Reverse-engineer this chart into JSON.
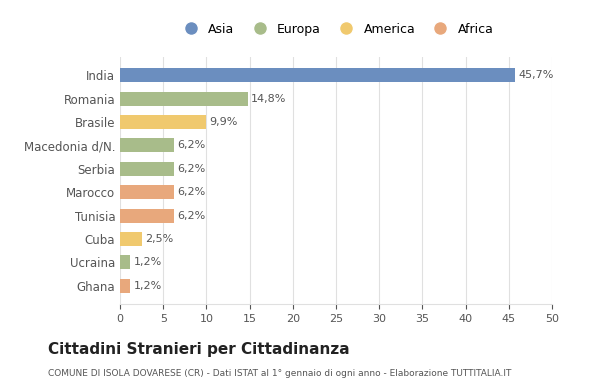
{
  "categories": [
    "India",
    "Romania",
    "Brasile",
    "Macedonia d/N.",
    "Serbia",
    "Marocco",
    "Tunisia",
    "Cuba",
    "Ucraina",
    "Ghana"
  ],
  "values": [
    45.7,
    14.8,
    9.9,
    6.2,
    6.2,
    6.2,
    6.2,
    2.5,
    1.2,
    1.2
  ],
  "labels": [
    "45,7%",
    "14,8%",
    "9,9%",
    "6,2%",
    "6,2%",
    "6,2%",
    "6,2%",
    "2,5%",
    "1,2%",
    "1,2%"
  ],
  "colors": [
    "#6b8ebf",
    "#a8bc8a",
    "#f0c96e",
    "#a8bc8a",
    "#a8bc8a",
    "#e8a87c",
    "#e8a87c",
    "#f0c96e",
    "#a8bc8a",
    "#e8a87c"
  ],
  "legend_labels": [
    "Asia",
    "Europa",
    "America",
    "Africa"
  ],
  "legend_colors": [
    "#6b8ebf",
    "#a8bc8a",
    "#f0c96e",
    "#e8a87c"
  ],
  "title": "Cittadini Stranieri per Cittadinanza",
  "subtitle": "COMUNE DI ISOLA DOVARESE (CR) - Dati ISTAT al 1° gennaio di ogni anno - Elaborazione TUTTITALIA.IT",
  "xlim": [
    0,
    50
  ],
  "xticks": [
    0,
    5,
    10,
    15,
    20,
    25,
    30,
    35,
    40,
    45,
    50
  ],
  "background_color": "#ffffff",
  "grid_color": "#e0e0e0"
}
